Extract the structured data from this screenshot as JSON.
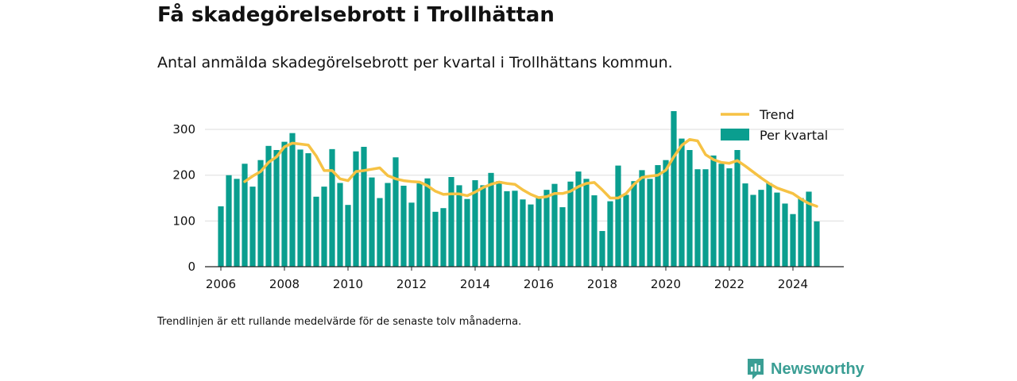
{
  "title": "Få skadegörelsebrott i Trollhättan",
  "subtitle": "Antal anmälda skadegörelsebrott per kvartal i Trollhättans kommun.",
  "footnote": "Trendlinjen är ett rullande medelvärde för de senaste tolv månaderna.",
  "brand": {
    "name": "Newsworthy",
    "icon": "newsworthy-logo-icon"
  },
  "colors": {
    "bars": "#0a9e8f",
    "trend": "#f6c244",
    "grid": "#dddddd",
    "axis": "#222222",
    "text": "#111111",
    "brand": "#3a9e94"
  },
  "chart_data": {
    "type": "bar",
    "title": "",
    "xlabel": "",
    "ylabel": "",
    "ylim": [
      0,
      340
    ],
    "xlim": [
      2005.5,
      2025.6
    ],
    "yticks": [
      0,
      100,
      200,
      300
    ],
    "xticks": [
      2006,
      2008,
      2010,
      2012,
      2014,
      2016,
      2018,
      2020,
      2022,
      2024
    ],
    "grid": true,
    "legend_position": "top-right",
    "x": [
      2006.0,
      2006.25,
      2006.5,
      2006.75,
      2007.0,
      2007.25,
      2007.5,
      2007.75,
      2008.0,
      2008.25,
      2008.5,
      2008.75,
      2009.0,
      2009.25,
      2009.5,
      2009.75,
      2010.0,
      2010.25,
      2010.5,
      2010.75,
      2011.0,
      2011.25,
      2011.5,
      2011.75,
      2012.0,
      2012.25,
      2012.5,
      2012.75,
      2013.0,
      2013.25,
      2013.5,
      2013.75,
      2014.0,
      2014.25,
      2014.5,
      2014.75,
      2015.0,
      2015.25,
      2015.5,
      2015.75,
      2016.0,
      2016.25,
      2016.5,
      2016.75,
      2017.0,
      2017.25,
      2017.5,
      2017.75,
      2018.0,
      2018.25,
      2018.5,
      2018.75,
      2019.0,
      2019.25,
      2019.5,
      2019.75,
      2020.0,
      2020.25,
      2020.5,
      2020.75,
      2021.0,
      2021.25,
      2021.5,
      2021.75,
      2022.0,
      2022.25,
      2022.5,
      2022.75,
      2023.0,
      2023.25,
      2023.5,
      2023.75,
      2024.0,
      2024.25,
      2024.5,
      2024.75
    ],
    "series": [
      {
        "name": "Per kvartal",
        "type": "bar",
        "values": [
          132,
          200,
          192,
          225,
          175,
          233,
          264,
          255,
          273,
          292,
          256,
          248,
          153,
          175,
          257,
          183,
          135,
          252,
          262,
          195,
          150,
          183,
          239,
          177,
          140,
          182,
          193,
          120,
          128,
          196,
          178,
          148,
          189,
          178,
          205,
          187,
          165,
          166,
          147,
          136,
          152,
          168,
          181,
          130,
          186,
          208,
          192,
          156,
          78,
          143,
          221,
          157,
          187,
          211,
          192,
          222,
          233,
          340,
          280,
          255,
          213,
          213,
          243,
          225,
          215,
          255,
          182,
          157,
          168,
          183,
          162,
          138,
          115,
          150,
          164,
          99
        ]
      },
      {
        "name": "Trend",
        "type": "line",
        "values": [
          null,
          null,
          null,
          186,
          198,
          208,
          228,
          240,
          262,
          270,
          268,
          266,
          242,
          210,
          210,
          192,
          188,
          208,
          210,
          213,
          216,
          199,
          192,
          188,
          186,
          185,
          177,
          165,
          158,
          159,
          159,
          155,
          163,
          173,
          180,
          185,
          182,
          180,
          168,
          158,
          151,
          153,
          160,
          160,
          165,
          175,
          182,
          184,
          168,
          150,
          150,
          160,
          180,
          195,
          198,
          200,
          211,
          240,
          265,
          278,
          275,
          245,
          234,
          228,
          226,
          232,
          220,
          207,
          194,
          182,
          172,
          166,
          160,
          148,
          138,
          132
        ]
      }
    ]
  }
}
